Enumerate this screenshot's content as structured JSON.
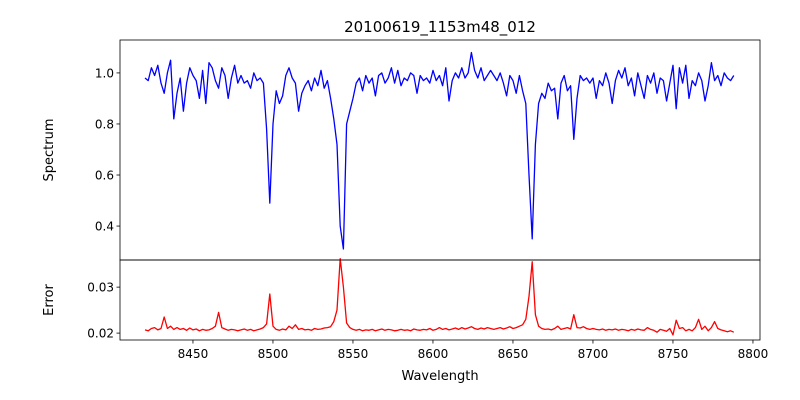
{
  "chart_data": [
    {
      "type": "line",
      "title": "20100619_1153m48_012",
      "xlabel": "",
      "ylabel": "Spectrum",
      "xlim": [
        8404.4,
        8804.4
      ],
      "ylim": [
        0.267,
        1.129
      ],
      "yticks": [
        0.4,
        0.6,
        0.8,
        1.0
      ],
      "ytick_labels": [
        "0.4",
        "0.6",
        "0.8",
        "1.0"
      ],
      "grid": false,
      "series": [
        {
          "name": "spectrum",
          "color": "#0000ff",
          "x_start": 8420,
          "x_step": 2,
          "values": [
            0.98,
            0.97,
            1.02,
            0.99,
            1.03,
            0.96,
            0.92,
            1.0,
            1.05,
            0.82,
            0.92,
            0.98,
            0.85,
            0.96,
            1.02,
            0.99,
            0.97,
            0.9,
            1.01,
            0.88,
            1.04,
            1.02,
            0.97,
            0.94,
            1.02,
            0.99,
            0.9,
            0.98,
            1.03,
            0.96,
            0.99,
            0.96,
            0.97,
            0.94,
            1.0,
            0.97,
            0.98,
            0.96,
            0.78,
            0.49,
            0.8,
            0.93,
            0.88,
            0.91,
            0.99,
            1.02,
            0.98,
            0.96,
            0.85,
            0.92,
            0.95,
            0.97,
            0.93,
            0.98,
            0.95,
            1.01,
            0.94,
            0.97,
            0.9,
            0.82,
            0.72,
            0.4,
            0.31,
            0.8,
            0.85,
            0.9,
            0.96,
            0.98,
            0.93,
            0.99,
            0.96,
            0.98,
            0.91,
            0.99,
            1.0,
            0.96,
            0.98,
            1.02,
            0.96,
            1.01,
            0.95,
            0.98,
            0.97,
            1.0,
            0.99,
            0.92,
            0.99,
            0.97,
            0.98,
            0.96,
            1.01,
            0.97,
            0.99,
            0.95,
            1.02,
            0.89,
            0.97,
            1.0,
            0.98,
            1.02,
            0.98,
            1.0,
            1.08,
            1.01,
            0.98,
            1.02,
            0.97,
            0.99,
            1.01,
            0.99,
            0.97,
            1.0,
            0.96,
            0.91,
            0.99,
            0.97,
            0.92,
            0.99,
            0.93,
            0.88,
            0.6,
            0.35,
            0.72,
            0.88,
            0.92,
            0.9,
            0.96,
            0.93,
            0.94,
            0.82,
            0.96,
            0.99,
            0.93,
            0.95,
            0.74,
            0.9,
            0.99,
            0.97,
            0.98,
            0.96,
            0.98,
            0.9,
            0.97,
            0.95,
            1.0,
            0.96,
            0.88,
            0.97,
            1.01,
            0.98,
            1.02,
            0.95,
            0.98,
            0.91,
            1.0,
            0.95,
            0.9,
            0.99,
            0.96,
            1.0,
            0.92,
            0.98,
            0.97,
            0.89,
            0.96,
            1.03,
            0.86,
            1.02,
            0.96,
            1.03,
            0.9,
            0.97,
            0.95,
            1.0,
            0.97,
            0.89,
            0.95,
            1.04,
            0.97,
            0.99,
            0.95,
            1.0,
            0.98,
            0.97,
            0.99
          ]
        }
      ]
    },
    {
      "type": "line",
      "title": "",
      "xlabel": "Wavelength",
      "ylabel": "Error",
      "xlim": [
        8404.4,
        8804.4
      ],
      "ylim": [
        0.0185,
        0.0359
      ],
      "xticks": [
        8450,
        8500,
        8550,
        8600,
        8650,
        8700,
        8750,
        8800
      ],
      "xtick_labels": [
        "8450",
        "8500",
        "8550",
        "8600",
        "8650",
        "8700",
        "8750",
        "8800"
      ],
      "yticks": [
        0.02,
        0.03
      ],
      "ytick_labels": [
        "0.02",
        "0.03"
      ],
      "grid": false,
      "series": [
        {
          "name": "error",
          "color": "#ff0000",
          "x_start": 8420,
          "x_step": 2,
          "values": [
            0.0207,
            0.0205,
            0.021,
            0.0212,
            0.0207,
            0.021,
            0.0235,
            0.021,
            0.0215,
            0.0208,
            0.0212,
            0.0208,
            0.021,
            0.0206,
            0.0211,
            0.0207,
            0.0209,
            0.0205,
            0.0208,
            0.0206,
            0.0207,
            0.021,
            0.0215,
            0.0245,
            0.0212,
            0.0209,
            0.0206,
            0.0208,
            0.0207,
            0.0205,
            0.0207,
            0.0209,
            0.0206,
            0.0208,
            0.0205,
            0.0207,
            0.0209,
            0.0212,
            0.022,
            0.0285,
            0.0215,
            0.0208,
            0.0206,
            0.0209,
            0.0207,
            0.0215,
            0.021,
            0.0218,
            0.0208,
            0.021,
            0.0207,
            0.0208,
            0.0206,
            0.021,
            0.0208,
            0.0209,
            0.0211,
            0.0212,
            0.0214,
            0.0225,
            0.025,
            0.0362,
            0.03,
            0.0222,
            0.0212,
            0.0208,
            0.0206,
            0.0208,
            0.0205,
            0.0207,
            0.0206,
            0.0208,
            0.0205,
            0.0207,
            0.0209,
            0.0206,
            0.0208,
            0.0207,
            0.0205,
            0.0206,
            0.0208,
            0.0206,
            0.0207,
            0.0205,
            0.0209,
            0.0207,
            0.0206,
            0.0208,
            0.0207,
            0.021,
            0.0206,
            0.0208,
            0.0212,
            0.0208,
            0.021,
            0.0207,
            0.0209,
            0.0211,
            0.0208,
            0.0212,
            0.0209,
            0.0211,
            0.0214,
            0.021,
            0.0208,
            0.0211,
            0.0209,
            0.0212,
            0.021,
            0.0208,
            0.021,
            0.0212,
            0.0209,
            0.0211,
            0.0214,
            0.021,
            0.0212,
            0.0215,
            0.0218,
            0.023,
            0.028,
            0.0355,
            0.024,
            0.0215,
            0.021,
            0.0208,
            0.0209,
            0.0207,
            0.021,
            0.0215,
            0.0208,
            0.021,
            0.0212,
            0.0209,
            0.024,
            0.0212,
            0.0211,
            0.0214,
            0.021,
            0.0208,
            0.021,
            0.0208,
            0.0207,
            0.0209,
            0.0206,
            0.0208,
            0.0207,
            0.0209,
            0.0206,
            0.0208,
            0.0207,
            0.0205,
            0.0208,
            0.0206,
            0.0209,
            0.0207,
            0.0206,
            0.0212,
            0.0208,
            0.0206,
            0.0202,
            0.0208,
            0.0206,
            0.0204,
            0.021,
            0.0196,
            0.0228,
            0.021,
            0.0212,
            0.0205,
            0.0208,
            0.0205,
            0.0212,
            0.023,
            0.0208,
            0.0215,
            0.0205,
            0.0212,
            0.0225,
            0.021,
            0.0207,
            0.0205,
            0.0203,
            0.0205,
            0.0202
          ]
        }
      ]
    }
  ]
}
